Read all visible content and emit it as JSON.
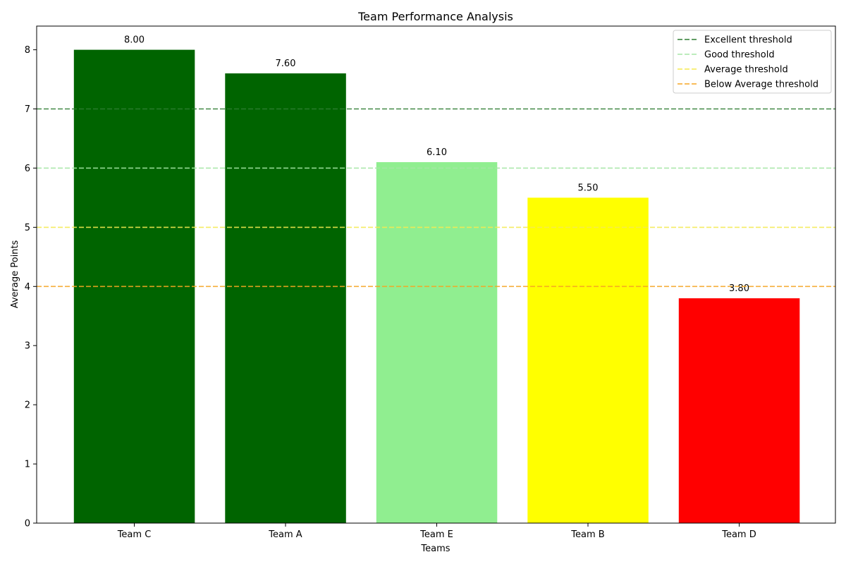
{
  "chart_data": {
    "type": "bar",
    "title": "Team Performance Analysis",
    "xlabel": "Teams",
    "ylabel": "Average Points",
    "categories": [
      "Team C",
      "Team A",
      "Team E",
      "Team B",
      "Team D"
    ],
    "values": [
      8.0,
      7.6,
      6.1,
      5.5,
      3.8
    ],
    "value_labels": [
      "8.00",
      "7.60",
      "6.10",
      "5.50",
      "3.80"
    ],
    "bar_colors": [
      "#006400",
      "#006400",
      "#90ee90",
      "#ffff00",
      "#ff0000"
    ],
    "ylim": [
      0,
      8.4
    ],
    "yticks": [
      0,
      1,
      2,
      3,
      4,
      5,
      6,
      7,
      8
    ],
    "ytick_labels": [
      "0",
      "1",
      "2",
      "3",
      "4",
      "5",
      "6",
      "7",
      "8"
    ],
    "thresholds": [
      {
        "name": "Excellent threshold",
        "value": 7,
        "color": "#2e7d32"
      },
      {
        "name": "Good threshold",
        "value": 6,
        "color": "#a5e6a5"
      },
      {
        "name": "Average threshold",
        "value": 5,
        "color": "#f5ea50"
      },
      {
        "name": "Below Average threshold",
        "value": 4,
        "color": "#f5a623"
      }
    ],
    "legend_position": "top-right",
    "grid": false
  }
}
